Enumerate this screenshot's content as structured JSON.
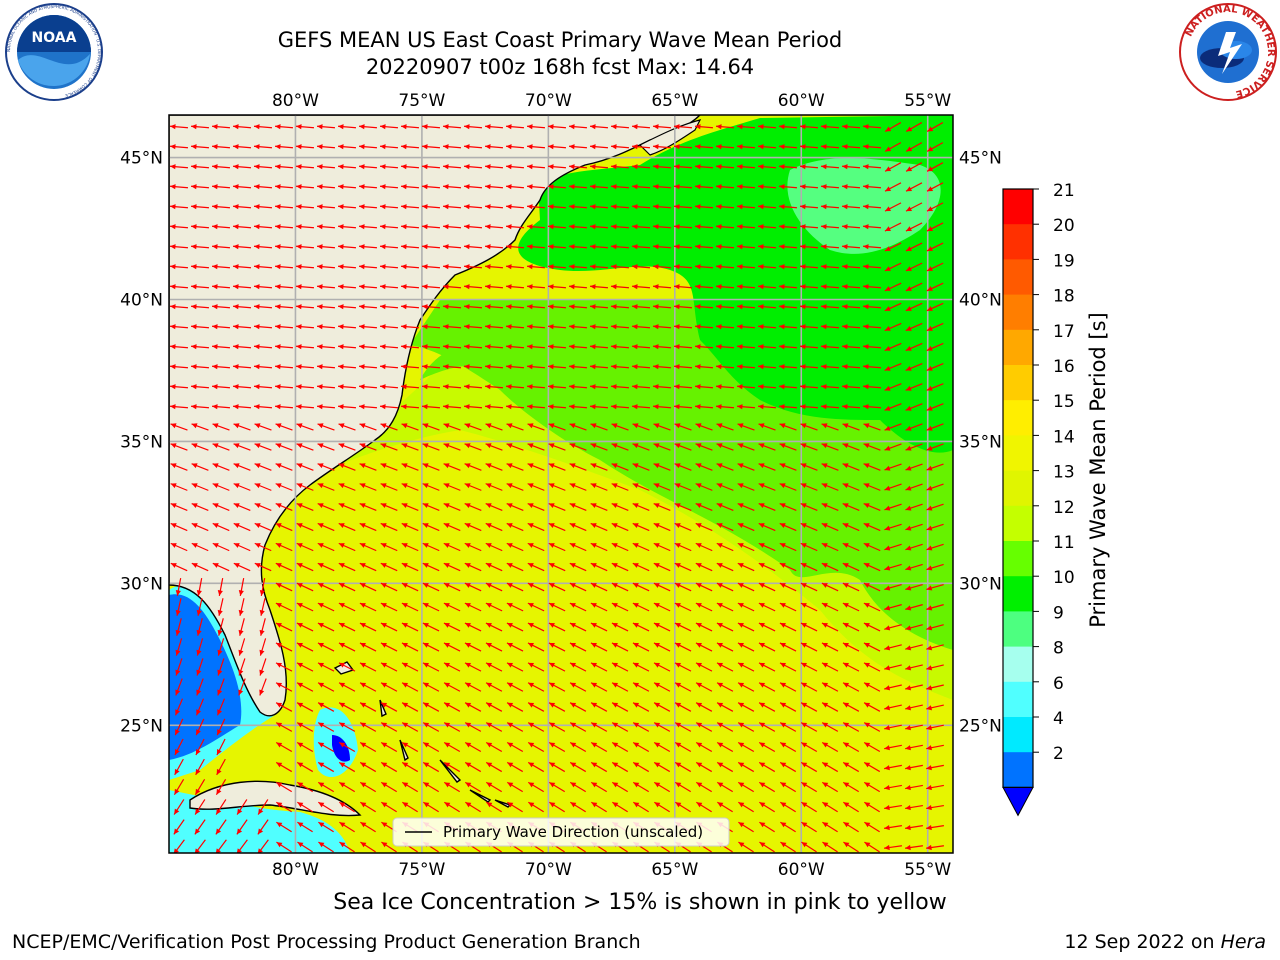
{
  "header": {
    "title_line1": "GEFS MEAN US East Coast Primary Wave Mean Period",
    "title_line2": "20220907 t00z 168h fcst   Max: 14.64"
  },
  "logos": {
    "left": "NOAA",
    "left_ring_text": "NATIONAL OCEANIC AND ATMOSPHERIC ADMINISTRATION · U.S. DEPARTMENT OF COMMERCE",
    "right_ring_text": "NATIONAL WEATHER SERVICE"
  },
  "map": {
    "lon_ticks": [
      "80°W",
      "75°W",
      "70°W",
      "65°W",
      "60°W",
      "55°W"
    ],
    "lat_ticks": [
      "45°N",
      "40°N",
      "35°N",
      "30°N",
      "25°N"
    ],
    "lon_range": [
      -85,
      -54
    ],
    "lat_range": [
      20.5,
      46.5
    ],
    "legend_label": "Primary Wave Direction (unscaled)",
    "arrow_color": "#ff0000",
    "land_color": "#efeddc",
    "grid": true
  },
  "colorbar": {
    "label": "Primary Wave Mean Period [s]",
    "ticks": [
      "21",
      "20",
      "19",
      "18",
      "17",
      "16",
      "15",
      "14",
      "13",
      "12",
      "11",
      "10",
      "9",
      "8",
      "6",
      "4",
      "2"
    ],
    "colors": [
      "#ff0000",
      "#ff3000",
      "#ff5a00",
      "#ff7e00",
      "#ffa800",
      "#ffcc00",
      "#ffee00",
      "#f0f500",
      "#e0f500",
      "#c4ff00",
      "#66ff00",
      "#00f000",
      "#4dff80",
      "#a6ffee",
      "#50ffff",
      "#00eaff",
      "#0073ff"
    ],
    "under_color": "#0000ff"
  },
  "footer": {
    "note": "Sea Ice Concentration > 15% is shown in pink to yellow",
    "credit": "NCEP/EMC/Verification Post Processing Product Generation Branch",
    "date": "12 Sep 2022 on",
    "machine": "Hera"
  }
}
